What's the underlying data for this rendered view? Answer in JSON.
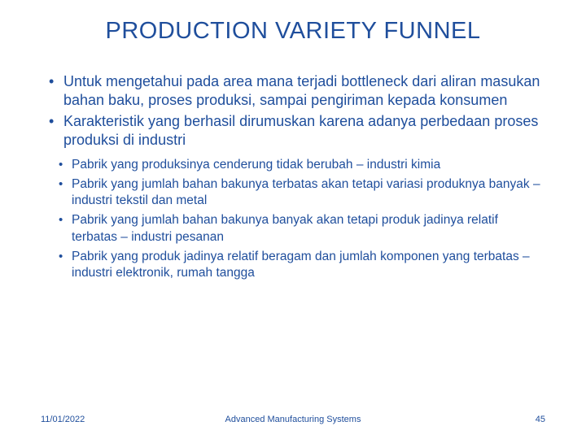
{
  "title": "PRODUCTION VARIETY FUNNEL",
  "colors": {
    "text": "#1f4e9c",
    "background": "#ffffff"
  },
  "mainBullets": [
    "Untuk mengetahui pada area mana terjadi bottleneck dari aliran masukan bahan baku, proses produksi, sampai pengiriman kepada konsumen",
    "Karakteristik yang berhasil dirumuskan karena adanya perbedaan proses produksi di industri"
  ],
  "subBullets": [
    "Pabrik yang produksinya cenderung tidak berubah – industri kimia",
    "Pabrik yang jumlah bahan bakunya terbatas akan tetapi variasi produknya banyak – industri tekstil dan metal",
    "Pabrik yang jumlah bahan bakunya banyak akan tetapi produk jadinya relatif terbatas – industri pesanan",
    "Pabrik yang produk jadinya relatif beragam dan jumlah komponen yang terbatas – industri elektronik, rumah tangga"
  ],
  "footer": {
    "date": "11/01/2022",
    "center": "Advanced Manufacturing Systems",
    "page": "45"
  }
}
